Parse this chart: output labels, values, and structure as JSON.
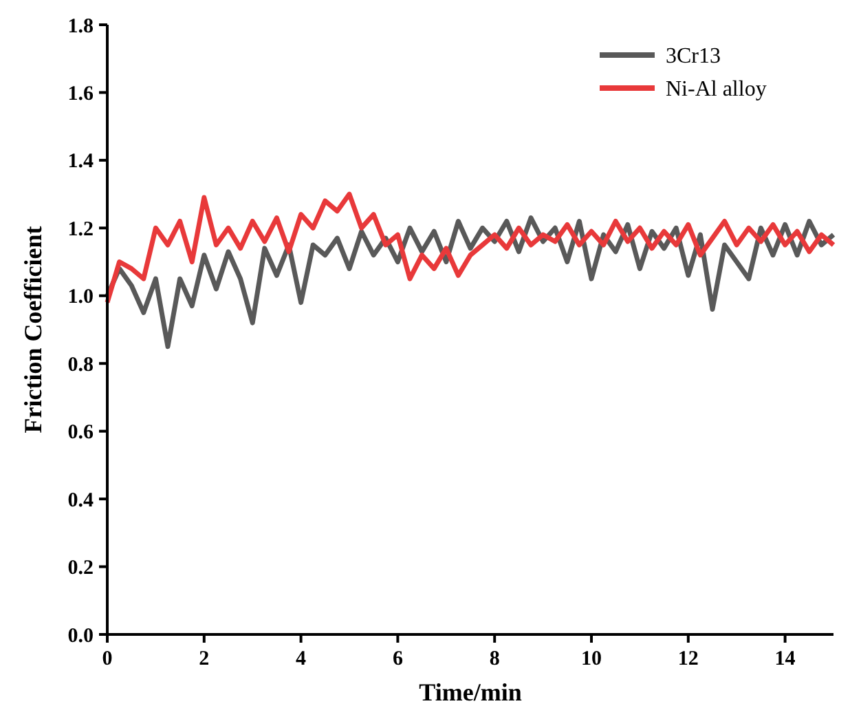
{
  "chart_data": {
    "type": "line",
    "xlabel": "Time/min",
    "ylabel": "Friction Coefficient",
    "xlim": [
      0,
      15
    ],
    "ylim": [
      0,
      1.8
    ],
    "xticks": [
      0,
      2,
      4,
      6,
      8,
      10,
      12,
      14
    ],
    "yticks": [
      {
        "value": 0,
        "label": "0.0"
      },
      {
        "value": 0.2,
        "label": "0.2"
      },
      {
        "value": 0.4,
        "label": "0.4"
      },
      {
        "value": 0.6,
        "label": "0.6"
      },
      {
        "value": 0.8,
        "label": "0.8"
      },
      {
        "value": 1,
        "label": "1.0"
      },
      {
        "value": 1.2,
        "label": "1.2"
      },
      {
        "value": 1.4,
        "label": "1.4"
      },
      {
        "value": 1.6,
        "label": "1.6"
      },
      {
        "value": 1.8,
        "label": "1.8"
      }
    ],
    "x": [
      0,
      0.25,
      0.5,
      0.75,
      1,
      1.25,
      1.5,
      1.75,
      2,
      2.25,
      2.5,
      2.75,
      3,
      3.25,
      3.5,
      3.75,
      4,
      4.25,
      4.5,
      4.75,
      5,
      5.25,
      5.5,
      5.75,
      6,
      6.25,
      6.5,
      6.75,
      7,
      7.25,
      7.5,
      7.75,
      8,
      8.25,
      8.5,
      8.75,
      9,
      9.25,
      9.5,
      9.75,
      10,
      10.25,
      10.5,
      10.75,
      11,
      11.25,
      11.5,
      11.75,
      12,
      12.25,
      12.5,
      12.75,
      13,
      13.25,
      13.5,
      13.75,
      14,
      14.25,
      14.5,
      14.75,
      15
    ],
    "legend": "top right",
    "line_style": "solid",
    "series": [
      {
        "name": "3Cr13",
        "color": "#595959",
        "values": [
          1.0,
          1.08,
          1.03,
          0.95,
          1.05,
          0.85,
          1.05,
          0.97,
          1.12,
          1.02,
          1.13,
          1.05,
          0.92,
          1.14,
          1.06,
          1.15,
          0.98,
          1.15,
          1.12,
          1.17,
          1.08,
          1.19,
          1.12,
          1.17,
          1.1,
          1.2,
          1.13,
          1.19,
          1.1,
          1.22,
          1.14,
          1.2,
          1.16,
          1.22,
          1.13,
          1.23,
          1.16,
          1.2,
          1.1,
          1.22,
          1.05,
          1.18,
          1.13,
          1.21,
          1.08,
          1.19,
          1.14,
          1.2,
          1.06,
          1.18,
          0.96,
          1.15,
          1.1,
          1.05,
          1.2,
          1.12,
          1.21,
          1.12,
          1.22,
          1.15,
          1.18
        ]
      },
      {
        "name": "Ni-Al alloy",
        "color": "#e8393a",
        "values": [
          0.98,
          1.1,
          1.08,
          1.05,
          1.2,
          1.15,
          1.22,
          1.1,
          1.29,
          1.15,
          1.2,
          1.14,
          1.22,
          1.16,
          1.23,
          1.13,
          1.24,
          1.2,
          1.28,
          1.25,
          1.3,
          1.2,
          1.24,
          1.15,
          1.18,
          1.05,
          1.12,
          1.08,
          1.14,
          1.06,
          1.12,
          1.15,
          1.18,
          1.14,
          1.2,
          1.15,
          1.18,
          1.16,
          1.21,
          1.15,
          1.19,
          1.15,
          1.22,
          1.16,
          1.2,
          1.14,
          1.19,
          1.15,
          1.21,
          1.12,
          1.17,
          1.22,
          1.15,
          1.2,
          1.16,
          1.21,
          1.15,
          1.19,
          1.13,
          1.18,
          1.15
        ]
      }
    ]
  }
}
